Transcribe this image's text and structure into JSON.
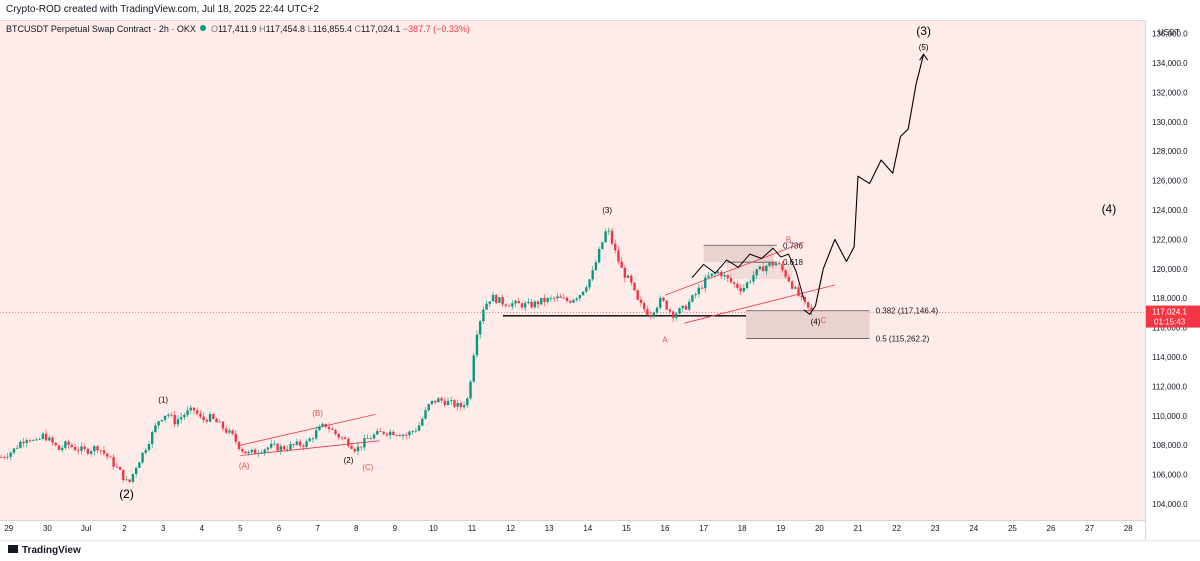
{
  "credit": "Crypto-ROD created with TradingView.com, Jul 18, 2025 22:44 UTC+2",
  "symbol_line": {
    "title": "BTCUSDT Perpetual Swap Contract · 2h · OKX",
    "o_label": "O",
    "o": "117,411.9",
    "h_label": "H",
    "h": "117,454.8",
    "l_label": "L",
    "l": "116,855.4",
    "c_label": "C",
    "c": "117,024.1",
    "change": "−387.7 (−0.33%)"
  },
  "currency": "USDT",
  "price_badge": {
    "price": "117,024.1",
    "countdown": "01:15:43",
    "color": "#f23645"
  },
  "brand": "TradingView",
  "colors": {
    "up": "#089981",
    "down": "#f23645",
    "background": "#fdece9",
    "fib_zone": "#ead2cf",
    "channel": "#f23645"
  },
  "chart_data": {
    "type": "candlestick",
    "title": "",
    "ylim": [
      103000,
      137000
    ],
    "y_ticks": [
      "104,000.0",
      "106,000.0",
      "108,000.0",
      "110,000.0",
      "112,000.0",
      "114,000.0",
      "116,000.0",
      "118,000.0",
      "120,000.0",
      "122,000.0",
      "124,000.0",
      "126,000.0",
      "128,000.0",
      "130,000.0",
      "132,000.0",
      "134,000.0",
      "136,000.0"
    ],
    "x_ticks": [
      "29",
      "30",
      "Jul",
      "2",
      "3",
      "4",
      "5",
      "6",
      "7",
      "8",
      "9",
      "10",
      "11",
      "12",
      "13",
      "14",
      "15",
      "16",
      "17",
      "18",
      "19",
      "20",
      "21",
      "22",
      "23",
      "24",
      "25",
      "26",
      "27",
      "28"
    ],
    "x_tick_days": [
      -2,
      -1,
      0,
      1,
      2,
      3,
      4,
      5,
      6,
      7,
      8,
      9,
      10,
      11,
      12,
      13,
      14,
      15,
      16,
      17,
      18,
      19,
      20,
      21,
      22,
      23,
      24,
      25,
      26,
      27
    ],
    "price_path": [
      [
        -2.2,
        107200
      ],
      [
        -1.9,
        107600
      ],
      [
        -1.7,
        108200
      ],
      [
        -1.5,
        108600
      ],
      [
        -1.3,
        108100
      ],
      [
        -1.1,
        108700
      ],
      [
        -0.9,
        108200
      ],
      [
        -0.7,
        107700
      ],
      [
        -0.5,
        108100
      ],
      [
        -0.3,
        107800
      ],
      [
        0,
        107600
      ],
      [
        0.3,
        107900
      ],
      [
        0.6,
        107100
      ],
      [
        0.9,
        106100
      ],
      [
        1.1,
        105300
      ],
      [
        1.3,
        106600
      ],
      [
        1.5,
        107600
      ],
      [
        1.7,
        108700
      ],
      [
        1.9,
        109800
      ],
      [
        2.1,
        110200
      ],
      [
        2.3,
        109600
      ],
      [
        2.6,
        110200
      ],
      [
        2.8,
        110400
      ],
      [
        3.0,
        109700
      ],
      [
        3.2,
        109900
      ],
      [
        3.5,
        109300
      ],
      [
        3.8,
        108600
      ],
      [
        4.0,
        107800
      ],
      [
        4.2,
        107400
      ],
      [
        4.5,
        107700
      ],
      [
        4.8,
        107900
      ],
      [
        5.1,
        107800
      ],
      [
        5.4,
        108000
      ],
      [
        5.7,
        108100
      ],
      [
        6.0,
        109000
      ],
      [
        6.2,
        109400
      ],
      [
        6.5,
        108700
      ],
      [
        6.8,
        108200
      ],
      [
        7.0,
        107700
      ],
      [
        7.2,
        108200
      ],
      [
        7.4,
        108600
      ],
      [
        7.7,
        108900
      ],
      [
        8.0,
        108900
      ],
      [
        8.3,
        108700
      ],
      [
        8.6,
        109200
      ],
      [
        8.9,
        110800
      ],
      [
        9.1,
        111100
      ],
      [
        9.4,
        110900
      ],
      [
        9.7,
        110600
      ],
      [
        9.9,
        111200
      ],
      [
        10.1,
        115500
      ],
      [
        10.3,
        117400
      ],
      [
        10.5,
        118100
      ],
      [
        10.8,
        117700
      ],
      [
        11.1,
        117600
      ],
      [
        11.5,
        117500
      ],
      [
        11.8,
        117800
      ],
      [
        12.2,
        118000
      ],
      [
        12.5,
        117800
      ],
      [
        12.8,
        118300
      ],
      [
        13.1,
        119500
      ],
      [
        13.3,
        121200
      ],
      [
        13.5,
        122800
      ],
      [
        13.7,
        121200
      ],
      [
        13.9,
        119800
      ],
      [
        14.1,
        119100
      ],
      [
        14.3,
        117700
      ],
      [
        14.6,
        116900
      ],
      [
        14.9,
        117900
      ],
      [
        15.2,
        116900
      ],
      [
        15.5,
        117300
      ],
      [
        15.8,
        118300
      ],
      [
        16.1,
        119400
      ],
      [
        16.4,
        119800
      ],
      [
        16.7,
        119100
      ],
      [
        17.0,
        118600
      ],
      [
        17.3,
        119600
      ],
      [
        17.6,
        120200
      ],
      [
        17.9,
        120400
      ],
      [
        18.2,
        119300
      ],
      [
        18.4,
        118400
      ],
      [
        18.6,
        117600
      ],
      [
        18.8,
        117000
      ]
    ],
    "projection_path": [
      [
        18.6,
        117200
      ],
      [
        18.75,
        116900
      ],
      [
        18.9,
        117500
      ],
      [
        19.1,
        120000
      ],
      [
        19.4,
        122000
      ],
      [
        19.7,
        120500
      ],
      [
        19.9,
        121500
      ],
      [
        20.0,
        126300
      ],
      [
        20.3,
        125800
      ],
      [
        20.6,
        127400
      ],
      [
        20.9,
        126500
      ],
      [
        21.1,
        129000
      ],
      [
        21.3,
        129500
      ],
      [
        21.5,
        132500
      ],
      [
        21.7,
        134600
      ]
    ],
    "wave_labels": [
      {
        "text": "(1)",
        "day": 2.0,
        "price": 110900,
        "color": "#000000"
      },
      {
        "text": "(2)",
        "day": 1.05,
        "price": 104400,
        "color": "#000000"
      },
      {
        "text": "(A)",
        "day": 4.1,
        "price": 106400,
        "color": "#e05050"
      },
      {
        "text": "(B)",
        "day": 6.0,
        "price": 110000,
        "color": "#e05050"
      },
      {
        "text": "(C)",
        "day": 7.3,
        "price": 106300,
        "color": "#e05050"
      },
      {
        "text": "(2)",
        "day": 6.8,
        "price": 106800,
        "color": "#000000"
      },
      {
        "text": "(3)",
        "day": 13.5,
        "price": 123800,
        "color": "#000000"
      },
      {
        "text": "A",
        "day": 15.0,
        "price": 115000,
        "color": "#e05050"
      },
      {
        "text": "B",
        "day": 18.2,
        "price": 121800,
        "color": "#e05050"
      },
      {
        "text": "C",
        "day": 19.1,
        "price": 116300,
        "color": "#e05050"
      },
      {
        "text": "(4)",
        "day": 18.9,
        "price": 116200,
        "color": "#000000"
      },
      {
        "text": "(5)",
        "day": 21.7,
        "price": 134900,
        "color": "#000000"
      },
      {
        "text": "(3)",
        "day": 21.7,
        "price": 135900,
        "color": "#000000"
      },
      {
        "text": "(4)",
        "day": 26.5,
        "price": 123800,
        "color": "#000000"
      }
    ],
    "fib_levels": [
      {
        "label": "0.786",
        "price": 121600
      },
      {
        "label": "0.618",
        "price": 120450
      },
      {
        "label": "0.382 (117,146.4)",
        "price": 117146.4
      },
      {
        "label": "0.5 (115,262.2)",
        "price": 115262.2
      }
    ],
    "support_line": {
      "price": 116800,
      "from_day": 10.8,
      "to_day": 19.0
    },
    "last_price": 117024.1
  }
}
